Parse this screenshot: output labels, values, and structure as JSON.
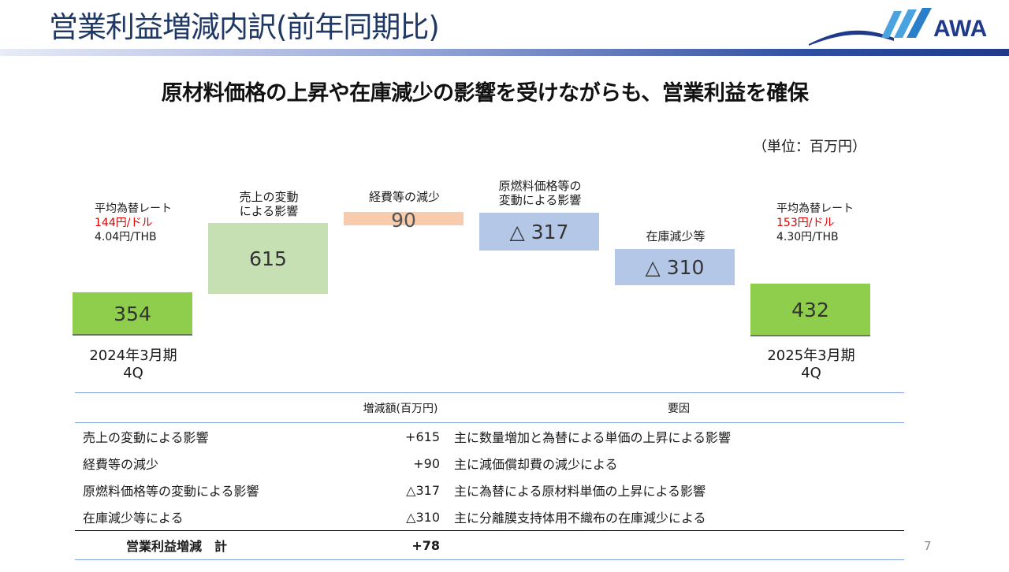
{
  "title": "営業利益増減内訳(前年同期比)",
  "logo": {
    "text": "AWA",
    "colors": {
      "navy": "#1f3a8a",
      "swoosh": "#4aa3df"
    }
  },
  "subtitle": "原材料価格の上昇や在庫減少の影響を受けながらも、営業利益を確保",
  "unit": "（単位：百万円）",
  "fx_left": {
    "title": "平均為替レート",
    "usd": "144円/ドル",
    "thb": "4.04円/THB"
  },
  "fx_right": {
    "title": "平均為替レート",
    "usd": "153円/ドル",
    "thb": "4.30円/THB"
  },
  "periods": {
    "start": [
      "2024年3月期",
      "4Q"
    ],
    "end": [
      "2025年3月期",
      "4Q"
    ]
  },
  "chart_data": {
    "type": "bar",
    "subtype": "waterfall",
    "categories": [
      "2024年3月期 4Q",
      "売上の変動による影響",
      "経費等の減少",
      "原燃料価格等の変動による影響",
      "在庫減少等",
      "2025年3月期 4Q"
    ],
    "bar_labels": [
      "",
      "売上の変動 による影響",
      "経費等の減少",
      "原燃料価格等の 変動による影響",
      "在庫減少等",
      ""
    ],
    "values": [
      354,
      615,
      90,
      -317,
      -310,
      432
    ],
    "display_values": [
      "354",
      "615",
      "90",
      "△ 317",
      "△ 310",
      "432"
    ],
    "kinds": [
      "total",
      "increase",
      "increase",
      "decrease",
      "decrease",
      "total"
    ],
    "colors": {
      "total": "#8fcd4c",
      "increase_sales": "#c6e0b4",
      "increase_exp": "#f8cbad",
      "decrease": "#b4c7e7"
    }
  },
  "table": {
    "headers": [
      "",
      "増減額(百万円)",
      "要因"
    ],
    "rows": [
      {
        "item": "売上の変動による影響",
        "amount": "+615",
        "reason": "主に数量増加と為替による単価の上昇による影響"
      },
      {
        "item": "経費等の減少",
        "amount": "+90",
        "reason": "主に減価償却費の減少による"
      },
      {
        "item": "原燃料価格等の変動による影響",
        "amount": "△317",
        "reason": "主に為替による原材料単価の上昇による影響"
      },
      {
        "item": "在庫減少等による",
        "amount": "△310",
        "reason": "主に分離膜支持体用不織布の在庫減少による"
      }
    ],
    "total": {
      "item": "営業利益増減　計",
      "amount": "+78",
      "reason": ""
    }
  },
  "page_number": "7"
}
